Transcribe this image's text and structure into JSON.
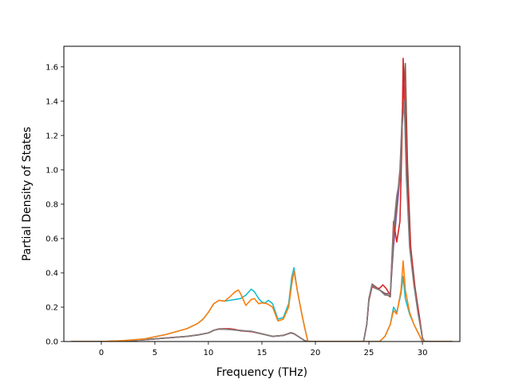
{
  "chart_data": {
    "type": "line",
    "title": "",
    "xlabel": "Frequency (THz)",
    "ylabel": "Partial Density of States",
    "xlim": [
      -3.5,
      33.5
    ],
    "ylim": [
      0.0,
      1.72
    ],
    "xticks": [
      0,
      5,
      10,
      15,
      20,
      25,
      30
    ],
    "xtick_labels": [
      "0",
      "5",
      "10",
      "15",
      "20",
      "25",
      "30"
    ],
    "yticks": [
      0.0,
      0.2,
      0.4,
      0.6,
      0.8,
      1.0,
      1.2,
      1.4,
      1.6
    ],
    "ytick_labels": [
      "0.0",
      "0.2",
      "0.4",
      "0.6",
      "0.8",
      "1.0",
      "1.2",
      "1.4",
      "1.6"
    ],
    "grid": false,
    "legend": "none",
    "series": [
      {
        "color": "#9467bd",
        "points": [
          [
            -2.8,
            0
          ],
          [
            0,
            0
          ],
          [
            2,
            0.003
          ],
          [
            4,
            0.01
          ],
          [
            6,
            0.02
          ],
          [
            8,
            0.03
          ],
          [
            9,
            0.038
          ],
          [
            10,
            0.05
          ],
          [
            10.5,
            0.065
          ],
          [
            11,
            0.072
          ],
          [
            12,
            0.07
          ],
          [
            13,
            0.065
          ],
          [
            14,
            0.058
          ],
          [
            15,
            0.045
          ],
          [
            16,
            0.03
          ],
          [
            17,
            0.035
          ],
          [
            17.7,
            0.05
          ],
          [
            18,
            0.045
          ],
          [
            18.5,
            0.025
          ],
          [
            19,
            0.005
          ],
          [
            19.3,
            0
          ],
          [
            24.5,
            0
          ],
          [
            24.8,
            0.1
          ],
          [
            25,
            0.24
          ],
          [
            25.3,
            0.33
          ],
          [
            25.6,
            0.31
          ],
          [
            26,
            0.3
          ],
          [
            26.5,
            0.28
          ],
          [
            27,
            0.28
          ],
          [
            27.3,
            0.55
          ],
          [
            27.6,
            0.75
          ],
          [
            27.9,
            0.95
          ],
          [
            28.1,
            1.3
          ],
          [
            28.3,
            1.55
          ],
          [
            28.5,
            1.0
          ],
          [
            28.8,
            0.6
          ],
          [
            29.2,
            0.35
          ],
          [
            29.6,
            0.18
          ],
          [
            30,
            0.02
          ],
          [
            30.2,
            0
          ],
          [
            32.8,
            0
          ]
        ]
      },
      {
        "color": "#8c564b",
        "points": [
          [
            -2.8,
            0
          ],
          [
            0,
            0
          ],
          [
            2,
            0.003
          ],
          [
            4,
            0.01
          ],
          [
            6,
            0.02
          ],
          [
            8,
            0.03
          ],
          [
            9,
            0.038
          ],
          [
            10,
            0.05
          ],
          [
            10.5,
            0.065
          ],
          [
            11,
            0.073
          ],
          [
            12,
            0.072
          ],
          [
            13,
            0.064
          ],
          [
            14,
            0.058
          ],
          [
            15,
            0.044
          ],
          [
            16,
            0.03
          ],
          [
            17,
            0.035
          ],
          [
            17.7,
            0.052
          ],
          [
            18,
            0.046
          ],
          [
            18.5,
            0.026
          ],
          [
            19,
            0.005
          ],
          [
            19.3,
            0
          ],
          [
            24.5,
            0
          ],
          [
            24.8,
            0.1
          ],
          [
            25,
            0.25
          ],
          [
            25.3,
            0.335
          ],
          [
            25.6,
            0.32
          ],
          [
            26,
            0.3
          ],
          [
            26.5,
            0.28
          ],
          [
            27,
            0.26
          ],
          [
            27.3,
            0.6
          ],
          [
            27.6,
            0.8
          ],
          [
            27.9,
            1.0
          ],
          [
            28.1,
            1.3
          ],
          [
            28.4,
            1.62
          ],
          [
            28.6,
            1.05
          ],
          [
            28.9,
            0.55
          ],
          [
            29.3,
            0.32
          ],
          [
            29.7,
            0.15
          ],
          [
            30,
            0.02
          ],
          [
            30.2,
            0
          ],
          [
            32.8,
            0
          ]
        ]
      },
      {
        "color": "#d62728",
        "points": [
          [
            -2.8,
            0
          ],
          [
            0,
            0
          ],
          [
            2,
            0.003
          ],
          [
            4,
            0.01
          ],
          [
            6,
            0.02
          ],
          [
            8,
            0.03
          ],
          [
            9,
            0.038
          ],
          [
            10,
            0.05
          ],
          [
            10.5,
            0.065
          ],
          [
            11,
            0.074
          ],
          [
            12,
            0.075
          ],
          [
            12.5,
            0.07
          ],
          [
            13,
            0.062
          ],
          [
            14,
            0.058
          ],
          [
            15,
            0.044
          ],
          [
            16,
            0.03
          ],
          [
            17,
            0.036
          ],
          [
            17.7,
            0.05
          ],
          [
            18,
            0.045
          ],
          [
            18.5,
            0.025
          ],
          [
            19,
            0.005
          ],
          [
            19.3,
            0
          ],
          [
            24.5,
            0
          ],
          [
            24.8,
            0.1
          ],
          [
            25,
            0.24
          ],
          [
            25.3,
            0.32
          ],
          [
            25.6,
            0.31
          ],
          [
            26,
            0.31
          ],
          [
            26.3,
            0.33
          ],
          [
            26.6,
            0.31
          ],
          [
            27,
            0.27
          ],
          [
            27.3,
            0.7
          ],
          [
            27.6,
            0.58
          ],
          [
            27.9,
            0.7
          ],
          [
            28.1,
            1.2
          ],
          [
            28.2,
            1.65
          ],
          [
            28.4,
            1.3
          ],
          [
            28.6,
            0.9
          ],
          [
            28.9,
            0.55
          ],
          [
            29.3,
            0.3
          ],
          [
            29.7,
            0.15
          ],
          [
            30,
            0.02
          ],
          [
            30.2,
            0
          ],
          [
            32.8,
            0
          ]
        ]
      },
      {
        "color": "#7f7f7f",
        "points": [
          [
            -2.8,
            0
          ],
          [
            0,
            0
          ],
          [
            2,
            0.003
          ],
          [
            4,
            0.01
          ],
          [
            6,
            0.02
          ],
          [
            8,
            0.03
          ],
          [
            9,
            0.038
          ],
          [
            10,
            0.05
          ],
          [
            10.5,
            0.066
          ],
          [
            11,
            0.073
          ],
          [
            12,
            0.07
          ],
          [
            13,
            0.063
          ],
          [
            14,
            0.06
          ],
          [
            15,
            0.045
          ],
          [
            16,
            0.03
          ],
          [
            17,
            0.035
          ],
          [
            17.7,
            0.05
          ],
          [
            18,
            0.045
          ],
          [
            18.5,
            0.025
          ],
          [
            19,
            0.005
          ],
          [
            19.3,
            0
          ],
          [
            24.5,
            0
          ],
          [
            24.8,
            0.1
          ],
          [
            25,
            0.25
          ],
          [
            25.3,
            0.33
          ],
          [
            25.6,
            0.31
          ],
          [
            26,
            0.3
          ],
          [
            26.5,
            0.27
          ],
          [
            27,
            0.27
          ],
          [
            27.3,
            0.66
          ],
          [
            27.6,
            0.85
          ],
          [
            27.9,
            0.95
          ],
          [
            28.1,
            1.25
          ],
          [
            28.3,
            1.4
          ],
          [
            28.5,
            0.95
          ],
          [
            28.8,
            0.55
          ],
          [
            29.2,
            0.33
          ],
          [
            29.6,
            0.16
          ],
          [
            30,
            0.02
          ],
          [
            30.2,
            0
          ],
          [
            32.8,
            0
          ]
        ]
      },
      {
        "color": "#17becf",
        "points": [
          [
            -2.8,
            0
          ],
          [
            0,
            0
          ],
          [
            2,
            0.005
          ],
          [
            4,
            0.015
          ],
          [
            6,
            0.04
          ],
          [
            8,
            0.075
          ],
          [
            9,
            0.105
          ],
          [
            9.5,
            0.13
          ],
          [
            10,
            0.17
          ],
          [
            10.5,
            0.22
          ],
          [
            11,
            0.24
          ],
          [
            11.5,
            0.235
          ],
          [
            12,
            0.24
          ],
          [
            12.5,
            0.245
          ],
          [
            13,
            0.25
          ],
          [
            13.5,
            0.27
          ],
          [
            14,
            0.305
          ],
          [
            14.3,
            0.29
          ],
          [
            14.7,
            0.25
          ],
          [
            15,
            0.23
          ],
          [
            15.3,
            0.225
          ],
          [
            15.6,
            0.24
          ],
          [
            16,
            0.22
          ],
          [
            16.5,
            0.13
          ],
          [
            17,
            0.14
          ],
          [
            17.5,
            0.22
          ],
          [
            17.8,
            0.38
          ],
          [
            18,
            0.43
          ],
          [
            18.3,
            0.3
          ],
          [
            18.7,
            0.17
          ],
          [
            19,
            0.08
          ],
          [
            19.3,
            0
          ],
          [
            24.5,
            0
          ],
          [
            26,
            0
          ],
          [
            26.5,
            0.03
          ],
          [
            27,
            0.1
          ],
          [
            27.3,
            0.2
          ],
          [
            27.6,
            0.17
          ],
          [
            28,
            0.28
          ],
          [
            28.2,
            0.38
          ],
          [
            28.4,
            0.25
          ],
          [
            28.8,
            0.16
          ],
          [
            29.2,
            0.1
          ],
          [
            29.6,
            0.05
          ],
          [
            30,
            0
          ],
          [
            32.8,
            0
          ]
        ]
      },
      {
        "color": "#ff7f0e",
        "points": [
          [
            -2.8,
            0
          ],
          [
            0,
            0
          ],
          [
            2,
            0.005
          ],
          [
            4,
            0.015
          ],
          [
            6,
            0.04
          ],
          [
            8,
            0.075
          ],
          [
            9,
            0.105
          ],
          [
            9.5,
            0.13
          ],
          [
            10,
            0.17
          ],
          [
            10.5,
            0.22
          ],
          [
            11,
            0.24
          ],
          [
            11.5,
            0.235
          ],
          [
            12,
            0.26
          ],
          [
            12.5,
            0.29
          ],
          [
            12.8,
            0.3
          ],
          [
            13,
            0.28
          ],
          [
            13.5,
            0.21
          ],
          [
            14,
            0.245
          ],
          [
            14.3,
            0.25
          ],
          [
            14.7,
            0.22
          ],
          [
            15,
            0.225
          ],
          [
            15.5,
            0.22
          ],
          [
            16,
            0.2
          ],
          [
            16.5,
            0.12
          ],
          [
            17,
            0.13
          ],
          [
            17.5,
            0.2
          ],
          [
            17.8,
            0.34
          ],
          [
            18,
            0.41
          ],
          [
            18.3,
            0.3
          ],
          [
            18.7,
            0.17
          ],
          [
            19,
            0.08
          ],
          [
            19.3,
            0
          ],
          [
            24.5,
            0
          ],
          [
            26,
            0
          ],
          [
            26.5,
            0.03
          ],
          [
            27,
            0.1
          ],
          [
            27.3,
            0.18
          ],
          [
            27.6,
            0.16
          ],
          [
            28,
            0.3
          ],
          [
            28.2,
            0.47
          ],
          [
            28.4,
            0.3
          ],
          [
            28.8,
            0.17
          ],
          [
            29.2,
            0.1
          ],
          [
            29.6,
            0.05
          ],
          [
            30,
            0
          ],
          [
            32.8,
            0
          ]
        ]
      }
    ]
  }
}
